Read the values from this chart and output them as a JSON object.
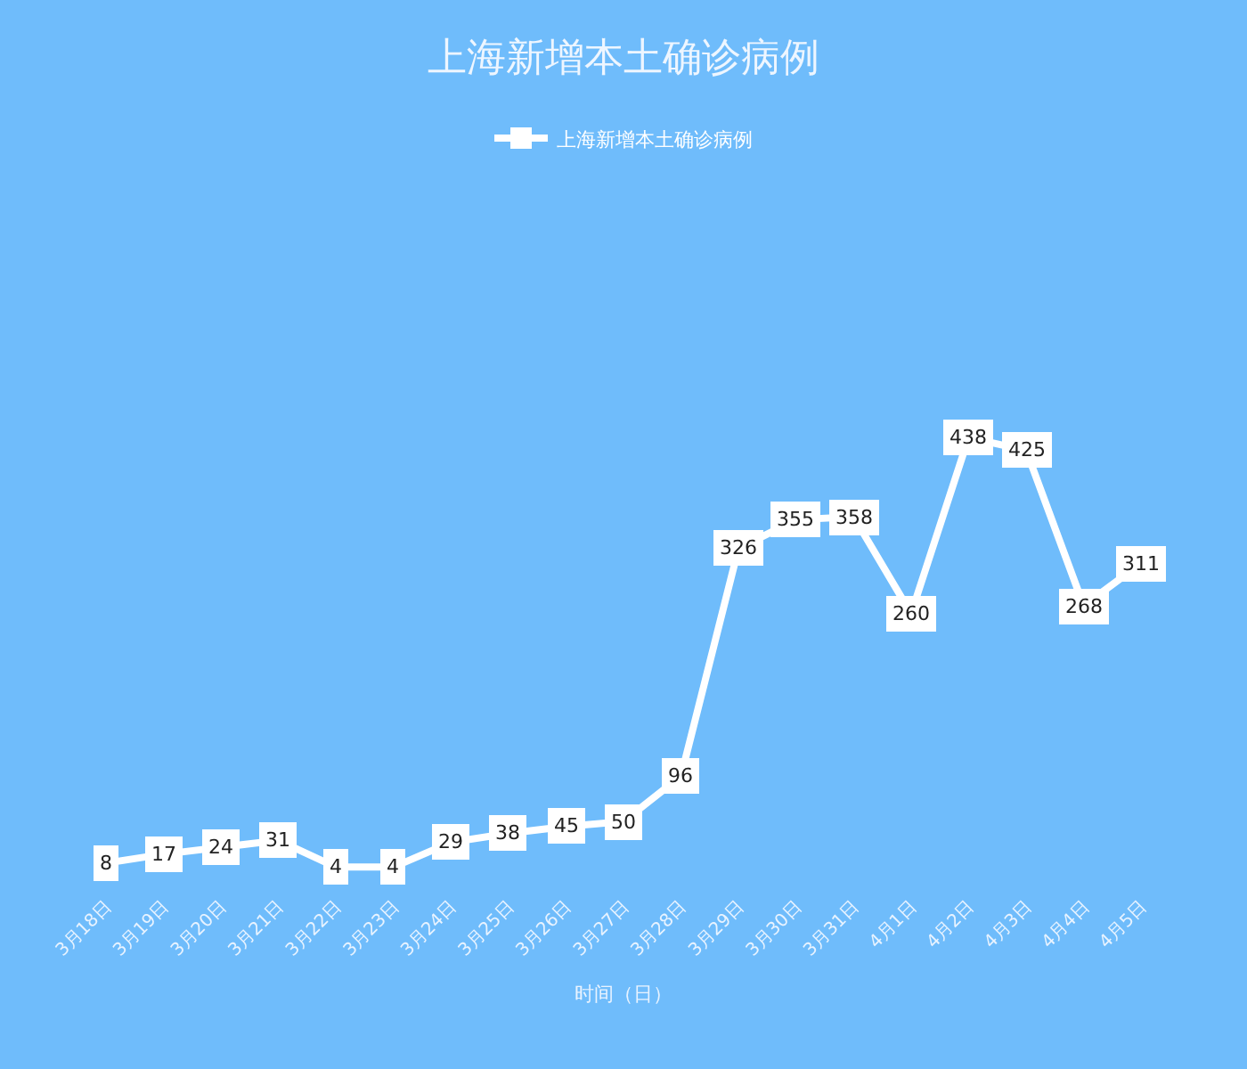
{
  "chart_data": {
    "type": "line",
    "title": "上海新增本土确诊病例",
    "xlabel": "时间（日）",
    "categories": [
      "3月18日",
      "3月19日",
      "3月20日",
      "3月21日",
      "3月22日",
      "3月23日",
      "3月24日",
      "3月25日",
      "3月26日",
      "3月27日",
      "3月28日",
      "3月29日",
      "3月30日",
      "3月31日",
      "4月1日",
      "4月2日",
      "4月3日",
      "4月4日",
      "4月5日"
    ],
    "series": [
      {
        "name": "上海新增本土确诊病例",
        "color": "#ffffff",
        "values": [
          8,
          17,
          24,
          31,
          4,
          4,
          29,
          38,
          45,
          50,
          96,
          326,
          355,
          358,
          260,
          438,
          425,
          268,
          311
        ]
      }
    ],
    "data_labels": true,
    "marker": "square",
    "legend": "top",
    "grid": false,
    "tick_labels": "x"
  }
}
